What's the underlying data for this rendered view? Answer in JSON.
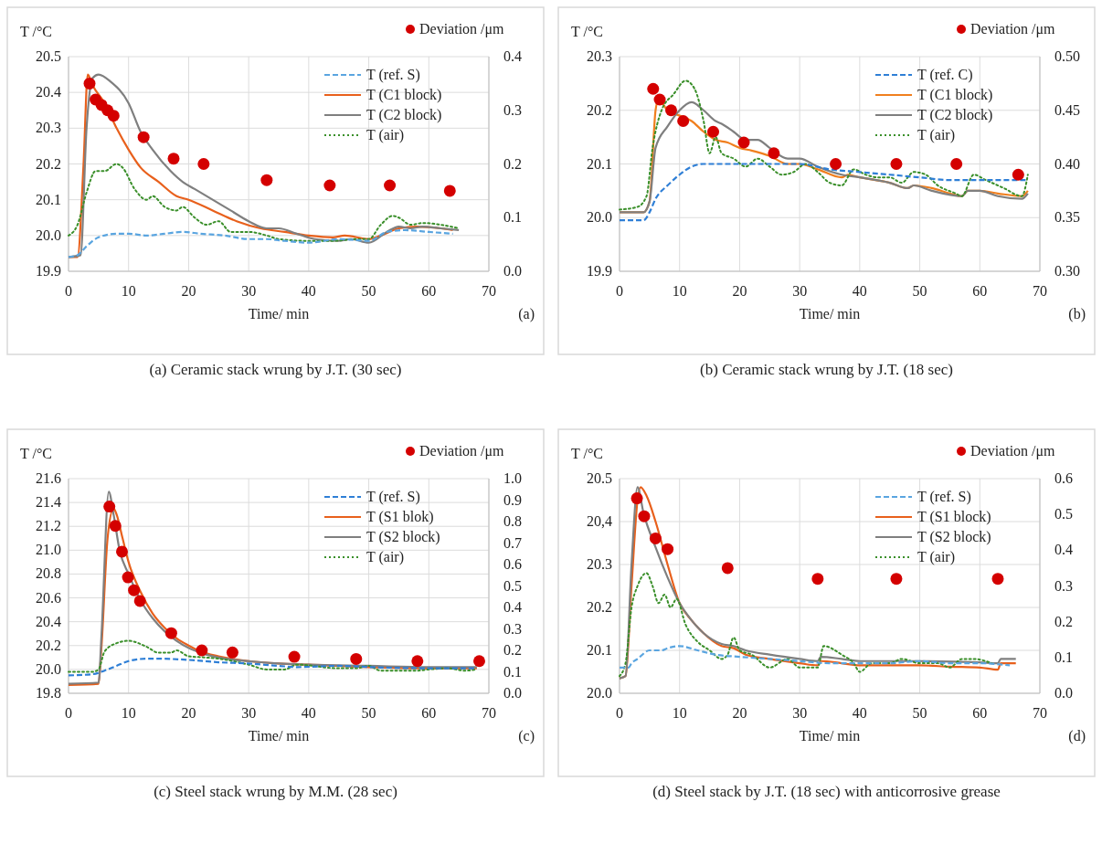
{
  "chart_data": [
    {
      "type": "line",
      "title": "(a) Ceramic stack wrung by J.T. (30 sec)",
      "xlabel": "Time/ min",
      "ylabel": "T /°C",
      "y2label": "Deviation /μm",
      "annotations": [
        "(a)"
      ],
      "xlim": [
        0,
        70
      ],
      "xticks": [
        0,
        10,
        20,
        30,
        40,
        50,
        60,
        70
      ],
      "ylim": [
        19.9,
        20.5
      ],
      "yticks": [
        19.9,
        {
          "value": 20.0,
          "label": "20.0"
        },
        20.1,
        20.2,
        20.3,
        20.4,
        20.5
      ],
      "y2lim": [
        0,
        0.4
      ],
      "y2ticks": [
        {
          "value": 0,
          "label": "0.0"
        },
        0.1,
        0.2,
        0.3,
        0.4
      ],
      "grid": true,
      "legend": "top right",
      "series": [
        {
          "name": "T (ref. S)",
          "type": "line",
          "line_style": "dashed",
          "color": "#5aa5e0",
          "x": [
            0,
            1.5,
            3,
            5,
            8,
            10,
            13,
            16,
            19,
            22,
            26,
            30,
            33,
            36,
            40,
            45,
            50,
            53,
            56,
            60,
            64
          ],
          "values": [
            19.94,
            19.945,
            19.97,
            19.995,
            20.005,
            20.005,
            20.0,
            20.005,
            20.01,
            20.005,
            20.0,
            19.99,
            19.99,
            19.985,
            19.98,
            19.99,
            19.985,
            20.01,
            20.015,
            20.01,
            20.005
          ]
        },
        {
          "name": "T (C1 block)",
          "type": "line",
          "line_style": "solid",
          "color": "#e8601c",
          "x": [
            0,
            1.5,
            2.5,
            3.2,
            4,
            6,
            8,
            10,
            12,
            15,
            18,
            20,
            24,
            28,
            32,
            36,
            40,
            44,
            46,
            50,
            52,
            55,
            58,
            62,
            64
          ],
          "values": [
            19.94,
            19.94,
            20.2,
            20.45,
            20.42,
            20.37,
            20.3,
            20.24,
            20.19,
            20.15,
            20.11,
            20.1,
            20.07,
            20.04,
            20.02,
            20.01,
            20.0,
            19.995,
            20.0,
            19.99,
            20.0,
            20.02,
            20.025,
            20.02,
            20.015
          ]
        },
        {
          "name": "T (C2 block)",
          "type": "line",
          "line_style": "solid",
          "color": "#7f7f7f",
          "x": [
            0,
            2,
            3,
            4,
            5,
            7,
            10,
            12,
            14,
            17,
            19,
            21,
            24,
            27,
            30,
            33,
            35,
            38,
            41,
            45,
            47,
            50,
            53,
            55,
            57,
            59,
            62,
            65
          ],
          "values": [
            19.94,
            19.945,
            20.3,
            20.44,
            20.45,
            20.43,
            20.37,
            20.29,
            20.24,
            20.18,
            20.15,
            20.13,
            20.1,
            20.07,
            20.04,
            20.02,
            20.02,
            20.005,
            19.99,
            19.985,
            19.99,
            19.98,
            20.01,
            20.025,
            20.02,
            20.025,
            20.02,
            20.015
          ]
        },
        {
          "name": "T (air)",
          "type": "line",
          "line_style": "dotted",
          "color": "#3a8f2a",
          "x": [
            0,
            1.5,
            3,
            4.5,
            6,
            8,
            9,
            11,
            13,
            14,
            16,
            18,
            19,
            21,
            23,
            25,
            27,
            30,
            33,
            35,
            40,
            44,
            48,
            50,
            52,
            54,
            55,
            57,
            59,
            62,
            65
          ],
          "values": [
            20.0,
            20.03,
            20.12,
            20.18,
            20.18,
            20.2,
            20.19,
            20.13,
            20.1,
            20.11,
            20.08,
            20.07,
            20.08,
            20.05,
            20.03,
            20.04,
            20.01,
            20.01,
            20.0,
            19.99,
            19.985,
            19.985,
            19.99,
            19.99,
            20.03,
            20.055,
            20.05,
            20.03,
            20.035,
            20.03,
            20.02
          ]
        },
        {
          "type": "scatter",
          "axis": "y2",
          "marker": "circle",
          "color": "#d40000",
          "x": [
            3.5,
            4.5,
            5.5,
            6.5,
            7.5,
            12.5,
            17.5,
            22.5,
            33,
            43.5,
            53.5,
            63.5
          ],
          "values": [
            0.35,
            0.32,
            0.31,
            0.3,
            0.29,
            0.25,
            0.21,
            0.2,
            0.17,
            0.16,
            0.16,
            0.15
          ]
        }
      ]
    },
    {
      "type": "line",
      "title": "(b) Ceramic stack wrung by J.T. (18 sec)",
      "xlabel": "Time/ min",
      "ylabel": "T /°C",
      "y2label": "Deviation /μm",
      "annotations": [
        "(b)"
      ],
      "xlim": [
        0,
        70
      ],
      "xticks": [
        0,
        10,
        20,
        30,
        40,
        50,
        60,
        70
      ],
      "ylim": [
        19.9,
        20.3
      ],
      "yticks": [
        19.9,
        {
          "value": 20.0,
          "label": "20.0"
        },
        20.1,
        20.2,
        20.3
      ],
      "y2lim": [
        0.3,
        0.5
      ],
      "y2ticks": [
        {
          "value": 0.3,
          "label": "0.30"
        },
        {
          "value": 0.35,
          "label": "0.35"
        },
        {
          "value": 0.4,
          "label": "0.40"
        },
        {
          "value": 0.45,
          "label": "0.45"
        },
        {
          "value": 0.5,
          "label": "0.50"
        }
      ],
      "grid": true,
      "legend": "top right",
      "series": [
        {
          "name": "T (ref. C)",
          "type": "line",
          "line_style": "dashed",
          "color": "#2f7fd6",
          "x": [
            0,
            4,
            5,
            6,
            8,
            10,
            12,
            14,
            20,
            25,
            30,
            35,
            40,
            45,
            50,
            55,
            60,
            65,
            68
          ],
          "values": [
            19.995,
            19.995,
            20.01,
            20.035,
            20.06,
            20.08,
            20.095,
            20.1,
            20.1,
            20.1,
            20.1,
            20.09,
            20.085,
            20.08,
            20.075,
            20.07,
            20.07,
            20.07,
            20.07
          ]
        },
        {
          "name": "T (C1 block)",
          "type": "line",
          "line_style": "solid",
          "color": "#f07f1e",
          "x": [
            0,
            4,
            5,
            6,
            6.5,
            8,
            10,
            12,
            14,
            16,
            18,
            20,
            22,
            25,
            28,
            30,
            33,
            37,
            38,
            40,
            45,
            48,
            49,
            52,
            55,
            57,
            58,
            60,
            63,
            67,
            68
          ],
          "values": [
            20.01,
            20.01,
            20.03,
            20.2,
            20.22,
            20.2,
            20.19,
            20.18,
            20.16,
            20.145,
            20.14,
            20.13,
            20.125,
            20.115,
            20.1,
            20.1,
            20.09,
            20.075,
            20.08,
            20.075,
            20.065,
            20.055,
            20.06,
            20.055,
            20.045,
            20.04,
            20.05,
            20.05,
            20.045,
            20.04,
            20.05
          ]
        },
        {
          "name": "T (C2 block)",
          "type": "line",
          "line_style": "solid",
          "color": "#7f7f7f",
          "x": [
            0,
            4,
            5,
            6,
            8,
            10,
            12,
            14,
            16,
            17,
            19,
            21,
            23,
            25,
            28,
            30,
            33,
            37,
            40,
            45,
            48,
            49,
            52,
            57,
            58,
            60,
            63,
            67,
            68
          ],
          "values": [
            20.01,
            20.01,
            20.03,
            20.13,
            20.17,
            20.2,
            20.215,
            20.2,
            20.18,
            20.175,
            20.16,
            20.145,
            20.145,
            20.13,
            20.11,
            20.11,
            20.095,
            20.08,
            20.075,
            20.065,
            20.055,
            20.06,
            20.05,
            20.04,
            20.05,
            20.05,
            20.04,
            20.035,
            20.045
          ]
        },
        {
          "name": "T (air)",
          "type": "line",
          "line_style": "dotted",
          "color": "#3a8f2a",
          "x": [
            0,
            3,
            4.5,
            5.5,
            7,
            9,
            11,
            12.5,
            14,
            15,
            16,
            17,
            19,
            21,
            23,
            25,
            27,
            29,
            31,
            33,
            35,
            37,
            39,
            41,
            43,
            45,
            47,
            49,
            51,
            53,
            56,
            57,
            59,
            61,
            64,
            67,
            68
          ],
          "values": [
            20.015,
            20.02,
            20.04,
            20.13,
            20.2,
            20.23,
            20.255,
            20.24,
            20.18,
            20.12,
            20.15,
            20.12,
            20.11,
            20.095,
            20.11,
            20.095,
            20.08,
            20.085,
            20.1,
            20.085,
            20.065,
            20.06,
            20.09,
            20.08,
            20.075,
            20.075,
            20.065,
            20.085,
            20.08,
            20.06,
            20.045,
            20.04,
            20.08,
            20.07,
            20.055,
            20.04,
            20.08
          ]
        },
        {
          "type": "scatter",
          "axis": "y2",
          "marker": "circle",
          "color": "#d40000",
          "x": [
            5.6,
            6.7,
            8.6,
            10.6,
            15.6,
            20.7,
            25.7,
            36,
            46.1,
            56.1,
            66.4
          ],
          "values": [
            0.47,
            0.46,
            0.45,
            0.44,
            0.43,
            0.42,
            0.41,
            0.4,
            0.4,
            0.4,
            0.39
          ]
        }
      ]
    },
    {
      "type": "line",
      "title": "(c) Steel stack wrung by M.M. (28 sec)",
      "xlabel": "Time/ min",
      "ylabel": "T /°C",
      "y2label": "Deviation /μm",
      "annotations": [
        "(c)"
      ],
      "xlim": [
        0,
        70
      ],
      "xticks": [
        0,
        10,
        20,
        30,
        40,
        50,
        60,
        70
      ],
      "ylim": [
        19.8,
        21.6
      ],
      "yticks": [
        {
          "value": 19.8,
          "label": "19.8"
        },
        {
          "value": 20.0,
          "label": "20.0"
        },
        {
          "value": 20.2,
          "label": "20.2"
        },
        {
          "value": 20.4,
          "label": "20.4"
        },
        {
          "value": 20.6,
          "label": "20.6"
        },
        {
          "value": 20.8,
          "label": "20.8"
        },
        {
          "value": 21.0,
          "label": "21.0"
        },
        {
          "value": 21.2,
          "label": "21.2"
        },
        {
          "value": 21.4,
          "label": "21.4"
        },
        {
          "value": 21.6,
          "label": "21.6"
        }
      ],
      "y2lim": [
        0,
        1
      ],
      "y2ticks": [
        {
          "value": 0,
          "label": "0.0"
        },
        0.1,
        0.2,
        0.3,
        0.4,
        0.5,
        0.6,
        0.7,
        0.8,
        0.9,
        {
          "value": 1,
          "label": "1.0"
        }
      ],
      "grid": true,
      "legend": "top right",
      "series": [
        {
          "name": "T (ref. S)",
          "type": "line",
          "line_style": "dashed",
          "color": "#2f7fd6",
          "x": [
            0,
            4,
            6,
            8,
            10,
            13,
            15,
            20,
            25,
            30,
            35,
            38,
            45,
            50,
            60,
            68
          ],
          "values": [
            19.95,
            19.96,
            19.99,
            20.03,
            20.07,
            20.09,
            20.09,
            20.08,
            20.06,
            20.05,
            20.03,
            20.02,
            20.03,
            20.02,
            20.01,
            20.01
          ]
        },
        {
          "name": "T (S1 blok)",
          "type": "line",
          "line_style": "solid",
          "color": "#e8601c",
          "x": [
            0,
            5,
            5.5,
            6.5,
            7.5,
            8,
            9,
            10,
            12,
            14,
            16,
            18,
            20,
            22,
            25,
            30,
            35,
            40,
            50,
            60,
            68
          ],
          "values": [
            19.87,
            19.88,
            20.2,
            21.1,
            21.35,
            21.3,
            21.1,
            20.9,
            20.65,
            20.47,
            20.35,
            20.26,
            20.2,
            20.15,
            20.11,
            20.07,
            20.05,
            20.04,
            20.02,
            20.01,
            20.01
          ]
        },
        {
          "name": "T (S2 block)",
          "type": "line",
          "line_style": "solid",
          "color": "#7f7f7f",
          "x": [
            0,
            5,
            5.5,
            6.7,
            7.5,
            8.5,
            10,
            12,
            14,
            16,
            18,
            20,
            22,
            25,
            30,
            35,
            40,
            50,
            60,
            68
          ],
          "values": [
            19.88,
            19.89,
            20.3,
            21.49,
            21.3,
            21.0,
            20.8,
            20.58,
            20.43,
            20.32,
            20.24,
            20.18,
            20.14,
            20.1,
            20.07,
            20.05,
            20.04,
            20.03,
            20.02,
            20.02
          ]
        },
        {
          "name": "T (air)",
          "type": "line",
          "line_style": "dotted",
          "color": "#3a8f2a",
          "x": [
            0,
            4,
            5,
            6,
            8,
            10,
            13,
            15,
            17,
            18,
            20,
            23,
            25,
            30,
            33,
            36,
            38,
            45,
            48,
            50,
            52,
            58,
            60,
            63,
            66,
            68
          ],
          "values": [
            19.98,
            19.98,
            20.0,
            20.15,
            20.22,
            20.24,
            20.19,
            20.14,
            20.14,
            20.16,
            20.11,
            20.1,
            20.09,
            20.04,
            20.0,
            20.0,
            20.04,
            20.01,
            20.01,
            20.03,
            19.99,
            19.99,
            20.0,
            20.01,
            19.99,
            20.0
          ]
        },
        {
          "type": "scatter",
          "axis": "y2",
          "marker": "circle",
          "color": "#d40000",
          "x": [
            6.8,
            7.8,
            8.9,
            9.9,
            10.9,
            11.9,
            17.1,
            22.2,
            27.3,
            37.6,
            47.9,
            58.1,
            68.4
          ],
          "values": [
            0.87,
            0.78,
            0.66,
            0.54,
            0.48,
            0.43,
            0.28,
            0.2,
            0.19,
            0.17,
            0.16,
            0.15,
            0.15
          ]
        }
      ]
    },
    {
      "type": "line",
      "title": "(d) Steel stack by J.T. (18 sec) with anticorrosive grease",
      "xlabel": "Time/ min",
      "ylabel": "T /°C",
      "y2label": "Deviation /μm",
      "annotations": [
        "(d)"
      ],
      "xlim": [
        0,
        70
      ],
      "xticks": [
        0,
        10,
        20,
        30,
        40,
        50,
        60,
        70
      ],
      "ylim": [
        20.0,
        20.5
      ],
      "yticks": [
        {
          "value": 20.0,
          "label": "20.0"
        },
        20.1,
        20.2,
        20.3,
        {
          "value": 20.4,
          "label": "20,4"
        },
        20.5
      ],
      "y2lim": [
        0,
        0.6
      ],
      "y2ticks": [
        {
          "value": 0,
          "label": "0.0"
        },
        0.1,
        0.2,
        0.3,
        0.4,
        0.5,
        0.6
      ],
      "grid": true,
      "legend": "top right",
      "series": [
        {
          "name": "T (ref. S)",
          "type": "line",
          "line_style": "dashed",
          "color": "#5aa5e0",
          "x": [
            0,
            1.5,
            2,
            3,
            5,
            7,
            8,
            10,
            13,
            16,
            20,
            25,
            30,
            35,
            40,
            45,
            50,
            55,
            60,
            65
          ],
          "values": [
            20.06,
            20.06,
            20.07,
            20.08,
            20.1,
            20.1,
            20.105,
            20.11,
            20.1,
            20.09,
            20.085,
            20.08,
            20.075,
            20.07,
            20.07,
            20.07,
            20.075,
            20.07,
            20.07,
            20.065
          ]
        },
        {
          "name": "T (S1 block)",
          "type": "line",
          "line_style": "solid",
          "color": "#e8601c",
          "x": [
            0,
            1,
            2,
            3,
            3.5,
            4.5,
            6,
            8,
            10,
            12,
            14,
            17,
            19,
            21,
            25,
            30,
            33,
            33.5,
            37,
            40,
            45,
            50,
            55,
            60,
            63,
            63.5,
            66
          ],
          "values": [
            20.035,
            20.04,
            20.25,
            20.45,
            20.48,
            20.46,
            20.4,
            20.3,
            20.21,
            20.17,
            20.14,
            20.11,
            20.105,
            20.09,
            20.08,
            20.07,
            20.065,
            20.075,
            20.07,
            20.065,
            20.065,
            20.065,
            20.062,
            20.06,
            20.055,
            20.07,
            20.07
          ]
        },
        {
          "name": "T (S2 block)",
          "type": "line",
          "line_style": "solid",
          "color": "#7f7f7f",
          "x": [
            0,
            1,
            2,
            3,
            4,
            6,
            8,
            10,
            12,
            14,
            17,
            19,
            21,
            25,
            30,
            33,
            33.5,
            37,
            40,
            50,
            60,
            63,
            63.5,
            66
          ],
          "values": [
            20.035,
            20.04,
            20.3,
            20.48,
            20.42,
            20.34,
            20.27,
            20.21,
            20.17,
            20.14,
            20.115,
            20.11,
            20.1,
            20.09,
            20.08,
            20.075,
            20.085,
            20.08,
            20.075,
            20.075,
            20.072,
            20.07,
            20.08,
            20.08
          ]
        },
        {
          "name": "T (air)",
          "type": "line",
          "line_style": "dotted",
          "color": "#3a8f2a",
          "x": [
            0,
            1,
            2,
            3,
            4.5,
            5.5,
            6.5,
            7.5,
            8.5,
            9.5,
            11,
            13,
            15,
            17,
            18,
            19,
            20,
            22,
            25,
            28,
            30,
            33,
            34,
            37,
            39,
            40,
            42,
            45,
            47,
            50,
            53,
            55,
            57,
            59,
            62
          ],
          "values": [
            20.04,
            20.07,
            20.2,
            20.25,
            20.28,
            20.25,
            20.21,
            20.23,
            20.2,
            20.22,
            20.16,
            20.12,
            20.1,
            20.08,
            20.09,
            20.13,
            20.1,
            20.09,
            20.06,
            20.08,
            20.06,
            20.06,
            20.11,
            20.09,
            20.07,
            20.05,
            20.07,
            20.07,
            20.08,
            20.07,
            20.07,
            20.06,
            20.08,
            20.08,
            20.07
          ]
        },
        {
          "type": "scatter",
          "axis": "y2",
          "marker": "circle",
          "color": "#d40000",
          "x": [
            2.9,
            4.1,
            6.0,
            8.0,
            18.0,
            33.0,
            46.1,
            63.0
          ],
          "values": [
            0.545,
            0.495,
            0.433,
            0.403,
            0.35,
            0.32,
            0.32,
            0.32
          ]
        }
      ]
    }
  ]
}
